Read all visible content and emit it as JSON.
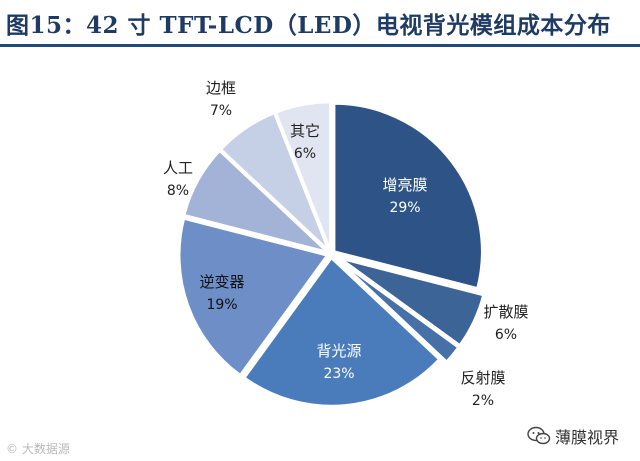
{
  "title": "图15：42 寸 TFT-LCD（LED）电视背光模组成本分布",
  "watermark_left": "© 大数据源",
  "watermark_right": "薄膜视界",
  "chart_data": {
    "type": "pie",
    "title": "图15：42 寸 TFT-LCD（LED）电视背光模组成本分布",
    "slices": [
      {
        "label": "增亮膜",
        "value": 29,
        "pct": "29%",
        "color": "#2e5487"
      },
      {
        "label": "扩散膜",
        "value": 6,
        "pct": "6%",
        "color": "#3c6497"
      },
      {
        "label": "反射膜",
        "value": 2,
        "pct": "2%",
        "color": "#4670a8"
      },
      {
        "label": "背光源",
        "value": 23,
        "pct": "23%",
        "color": "#4a7bbb"
      },
      {
        "label": "逆变器",
        "value": 19,
        "pct": "19%",
        "color": "#6d8ec7"
      },
      {
        "label": "人工",
        "value": 8,
        "pct": "8%",
        "color": "#a3b3d8"
      },
      {
        "label": "边框",
        "value": 7,
        "pct": "7%",
        "color": "#c5cfe6"
      },
      {
        "label": "其它",
        "value": 6,
        "pct": "6%",
        "color": "#e0e5f1"
      }
    ]
  }
}
